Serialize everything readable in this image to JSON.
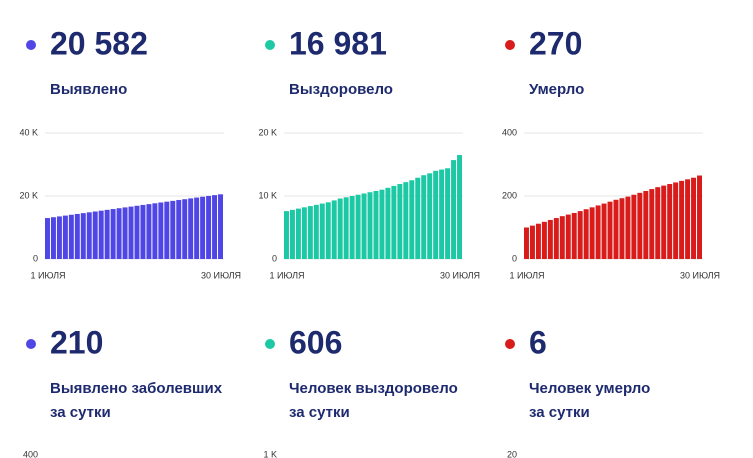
{
  "chart_data": [
    {
      "type": "bar",
      "color": "#4f46e5",
      "stat": "20 582",
      "title_lines": [
        "Выявлено"
      ],
      "categories": [
        "1 ИЮЛЯ",
        null,
        null,
        null,
        null,
        null,
        null,
        null,
        null,
        null,
        null,
        null,
        null,
        null,
        null,
        null,
        null,
        null,
        null,
        null,
        null,
        null,
        null,
        null,
        null,
        null,
        null,
        null,
        null,
        "30 ИЮЛЯ"
      ],
      "values": [
        13000,
        13260,
        13520,
        13780,
        14040,
        14300,
        14560,
        14820,
        15080,
        15340,
        15600,
        15860,
        16120,
        16380,
        16640,
        16900,
        17160,
        17420,
        17680,
        17940,
        18200,
        18460,
        18720,
        18980,
        19240,
        19500,
        19760,
        20020,
        20280,
        20540
      ],
      "ylim": [
        0,
        40000
      ],
      "yticks": [
        0,
        {
          "value": 20000,
          "label": "20 K"
        },
        {
          "value": 40000,
          "label": "40 K"
        }
      ]
    },
    {
      "type": "bar",
      "color": "#1dc9a4",
      "stat": "16 981",
      "title_lines": [
        "Выздоровело"
      ],
      "categories": [
        "1 ИЮЛЯ",
        null,
        null,
        null,
        null,
        null,
        null,
        null,
        null,
        null,
        null,
        null,
        null,
        null,
        null,
        null,
        null,
        null,
        null,
        null,
        null,
        null,
        null,
        null,
        null,
        null,
        null,
        null,
        null,
        "30 ИЮЛЯ"
      ],
      "values": [
        7600,
        7800,
        8000,
        8200,
        8400,
        8600,
        8800,
        9000,
        9300,
        9600,
        9800,
        10000,
        10200,
        10400,
        10600,
        10800,
        11000,
        11300,
        11600,
        11900,
        12200,
        12500,
        12900,
        13300,
        13600,
        14000,
        14200,
        14400,
        15700,
        16500
      ],
      "ylim": [
        0,
        20000
      ],
      "yticks": [
        0,
        {
          "value": 10000,
          "label": "10 K"
        },
        {
          "value": 20000,
          "label": "20 K"
        }
      ]
    },
    {
      "type": "bar",
      "color": "#d81b1b",
      "stat": "270",
      "title_lines": [
        "Умерло"
      ],
      "categories": [
        "1 ИЮЛЯ",
        null,
        null,
        null,
        null,
        null,
        null,
        null,
        null,
        null,
        null,
        null,
        null,
        null,
        null,
        null,
        null,
        null,
        null,
        null,
        null,
        null,
        null,
        null,
        null,
        null,
        null,
        null,
        null,
        "30 ИЮЛЯ"
      ],
      "values": [
        100,
        106,
        112,
        118,
        124,
        130,
        136,
        141,
        146,
        152,
        158,
        164,
        170,
        176,
        182,
        188,
        193,
        198,
        204,
        210,
        216,
        222,
        228,
        233,
        238,
        243,
        248,
        253,
        258,
        265
      ],
      "ylim": [
        0,
        400
      ],
      "yticks": [
        0,
        200,
        400
      ]
    },
    {
      "type": "bar",
      "color": "#4f46e5",
      "stat": "210",
      "title_lines": [
        "Выявлено заболевших",
        "за сутки"
      ],
      "yticks": [
        400
      ]
    },
    {
      "type": "bar",
      "color": "#1dc9a4",
      "stat": "606",
      "title_lines": [
        "Человек выздоровело",
        "за сутки"
      ],
      "yticks": [
        {
          "value": 1000,
          "label": "1 K"
        }
      ]
    },
    {
      "type": "bar",
      "color": "#d81b1b",
      "stat": "6",
      "title_lines": [
        "Человек умерло",
        "за сутки"
      ],
      "yticks": [
        20
      ]
    }
  ]
}
